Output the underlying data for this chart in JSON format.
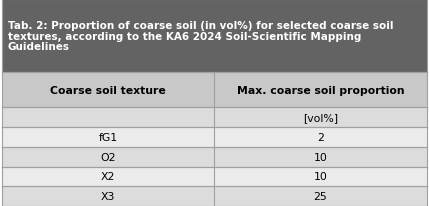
{
  "title_line1": "Tab. 2: Proportion of coarse soil (in vol%) for selected coarse soil",
  "title_line2": "textures, according to the KA6 2024 Soil-Scientific Mapping",
  "title_line3": "Guidelines",
  "col_headers": [
    "Coarse soil texture",
    "Max. coarse soil proportion"
  ],
  "sub_header": [
    "",
    "[vol%]"
  ],
  "rows": [
    [
      "fG1",
      "2"
    ],
    [
      "O2",
      "10"
    ],
    [
      "X2",
      "10"
    ],
    [
      "X3",
      "25"
    ]
  ],
  "title_bg": "#636363",
  "title_color": "#ffffff",
  "header_bg": "#c8c8c8",
  "header_color": "#000000",
  "subheader_bg": "#dcdcdc",
  "row_bg_odd": "#ebebeb",
  "row_bg_even": "#dcdcdc",
  "row_color": "#000000",
  "border_color": "#a0a0a0",
  "title_fontsize": 7.5,
  "header_fontsize": 7.8,
  "data_fontsize": 7.8,
  "fig_width": 4.29,
  "fig_height": 2.07,
  "dpi": 100
}
